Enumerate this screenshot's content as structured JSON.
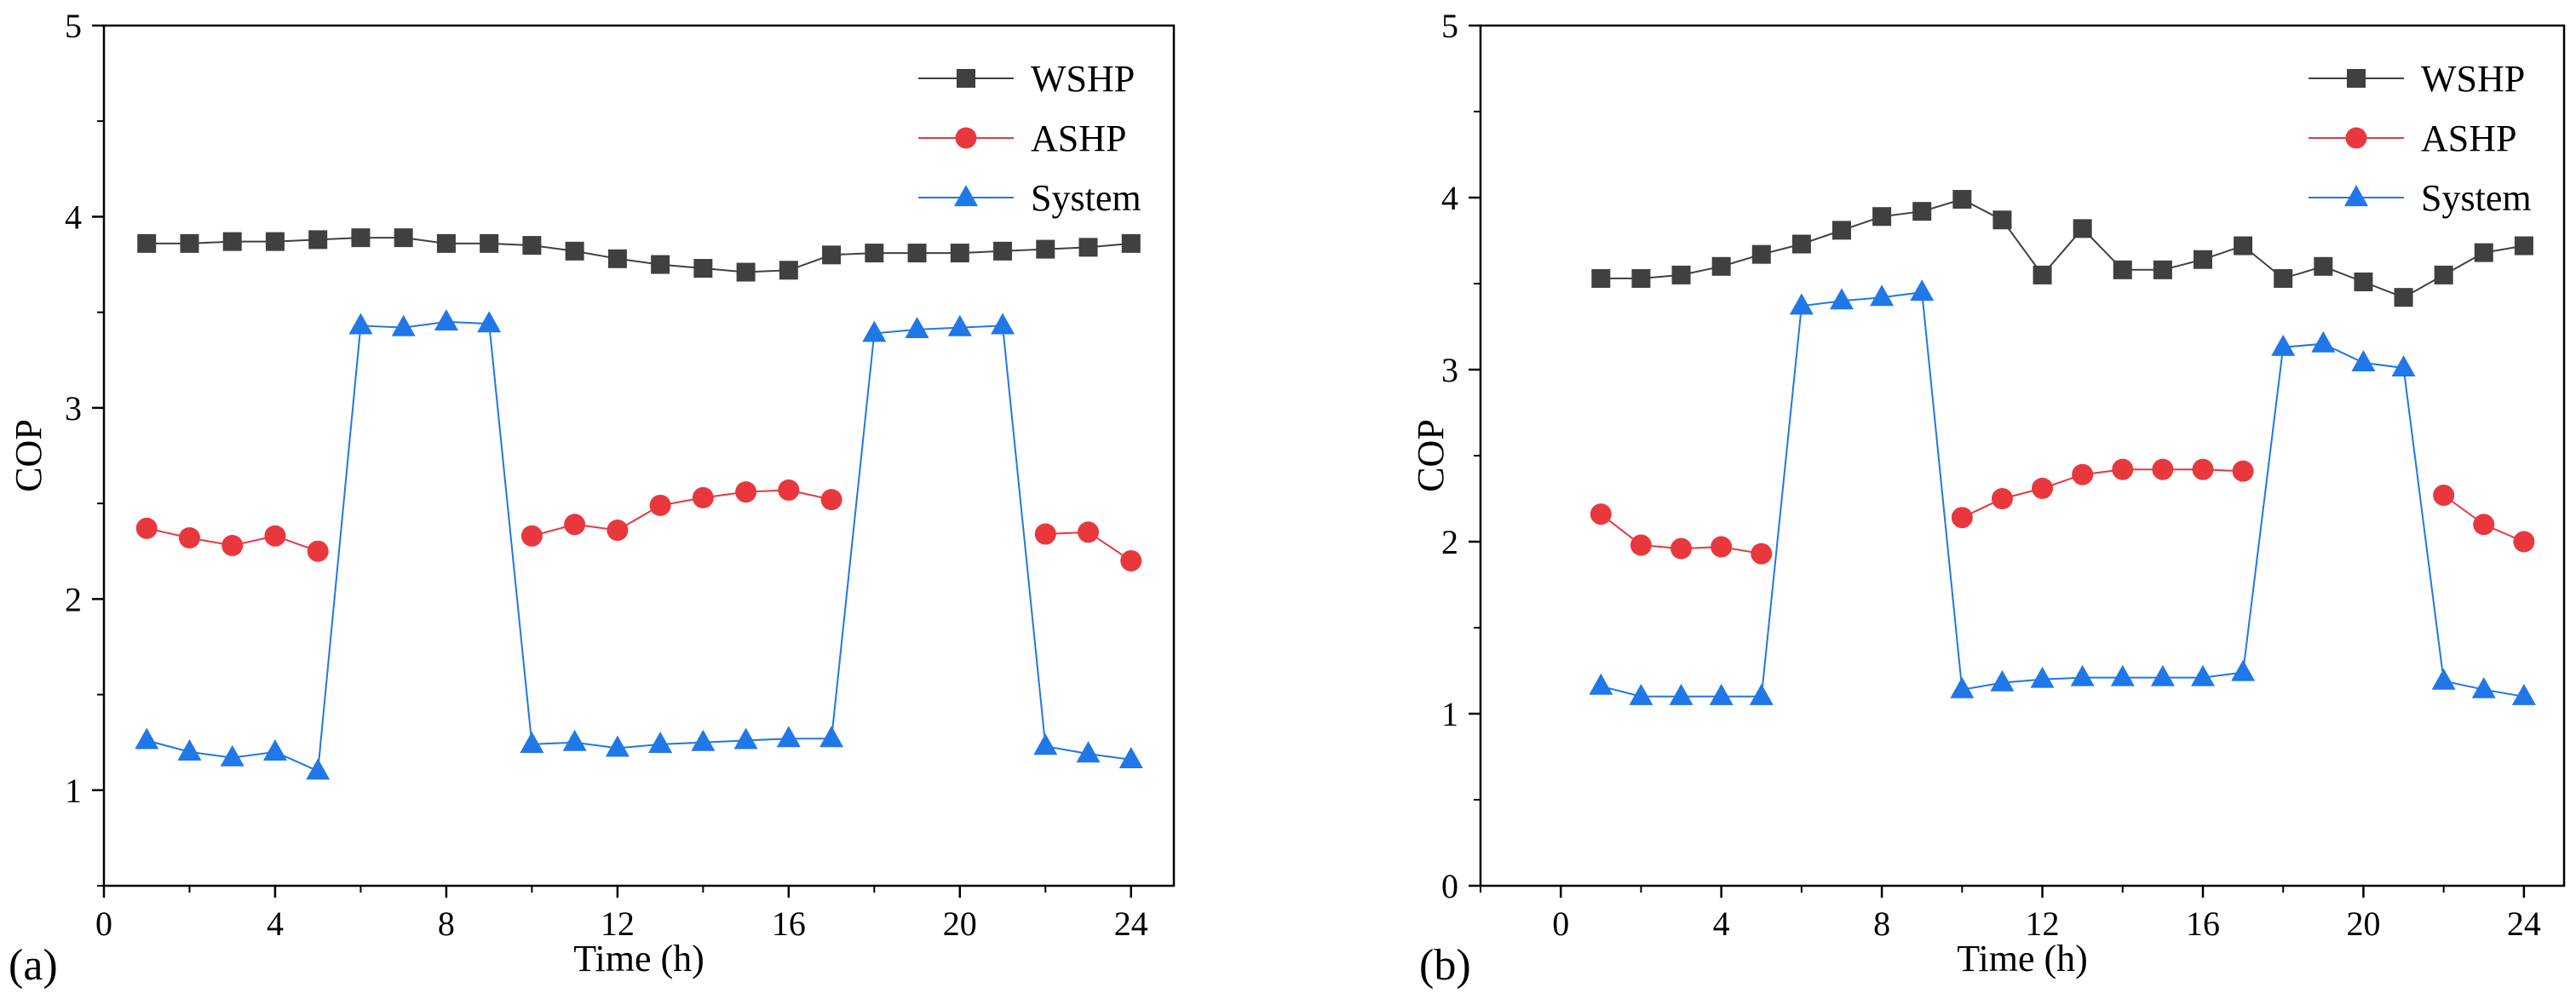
{
  "chart_data": [
    {
      "type": "line",
      "panel_label": "(a)",
      "xlabel": "Time (h)",
      "ylabel": "COP",
      "xlim": [
        0,
        25
      ],
      "ylim": [
        0.5,
        5
      ],
      "xticks": [
        "0",
        "4",
        "8",
        "12",
        "16",
        "20",
        "24"
      ],
      "yticks": [
        "1",
        "2",
        "3",
        "4",
        "5"
      ],
      "xtick_values": [
        0,
        4,
        8,
        12,
        16,
        20,
        24
      ],
      "ytick_values": [
        1,
        2,
        3,
        4,
        5
      ],
      "legend_position": "top-right",
      "series": [
        {
          "name": "WSHP",
          "color": "#404040",
          "marker": "square",
          "points": [
            [
              1,
              3.86
            ],
            [
              2,
              3.86
            ],
            [
              3,
              3.87
            ],
            [
              4,
              3.87
            ],
            [
              5,
              3.88
            ],
            [
              6,
              3.89
            ],
            [
              7,
              3.89
            ],
            [
              8,
              3.86
            ],
            [
              9,
              3.86
            ],
            [
              10,
              3.85
            ],
            [
              11,
              3.82
            ],
            [
              12,
              3.78
            ],
            [
              13,
              3.75
            ],
            [
              14,
              3.73
            ],
            [
              15,
              3.71
            ],
            [
              16,
              3.72
            ],
            [
              17,
              3.8
            ],
            [
              18,
              3.81
            ],
            [
              19,
              3.81
            ],
            [
              20,
              3.81
            ],
            [
              21,
              3.82
            ],
            [
              22,
              3.83
            ],
            [
              23,
              3.84
            ],
            [
              24,
              3.86
            ]
          ]
        },
        {
          "name": "ASHP",
          "color": "#e8383d",
          "marker": "circle",
          "segments": [
            [
              [
                1,
                2.37
              ],
              [
                2,
                2.32
              ],
              [
                3,
                2.28
              ],
              [
                4,
                2.33
              ],
              [
                5,
                2.25
              ]
            ],
            [
              [
                10,
                2.33
              ],
              [
                11,
                2.39
              ],
              [
                12,
                2.36
              ],
              [
                13,
                2.49
              ],
              [
                14,
                2.53
              ],
              [
                15,
                2.56
              ],
              [
                16,
                2.57
              ],
              [
                17,
                2.52
              ]
            ],
            [
              [
                22,
                2.34
              ],
              [
                23,
                2.35
              ],
              [
                24,
                2.2
              ]
            ]
          ]
        },
        {
          "name": "System",
          "color": "#1f77e8",
          "marker": "triangle",
          "points": [
            [
              1,
              1.26
            ],
            [
              2,
              1.2
            ],
            [
              3,
              1.17
            ],
            [
              4,
              1.2
            ],
            [
              5,
              1.1
            ],
            [
              6,
              3.43
            ],
            [
              7,
              3.42
            ],
            [
              8,
              3.45
            ],
            [
              9,
              3.44
            ],
            [
              10,
              1.24
            ],
            [
              11,
              1.25
            ],
            [
              12,
              1.22
            ],
            [
              13,
              1.24
            ],
            [
              14,
              1.25
            ],
            [
              15,
              1.26
            ],
            [
              16,
              1.27
            ],
            [
              17,
              1.27
            ],
            [
              18,
              3.39
            ],
            [
              19,
              3.41
            ],
            [
              20,
              3.42
            ],
            [
              21,
              3.43
            ],
            [
              22,
              1.23
            ],
            [
              23,
              1.19
            ],
            [
              24,
              1.16
            ]
          ]
        }
      ]
    },
    {
      "type": "line",
      "panel_label": "(b)",
      "xlabel": "Time (h)",
      "ylabel": "COP",
      "xlim": [
        -2,
        25
      ],
      "ylim": [
        0,
        5
      ],
      "xticks": [
        "0",
        "4",
        "8",
        "12",
        "16",
        "20",
        "24"
      ],
      "yticks": [
        "0",
        "1",
        "2",
        "3",
        "4",
        "5"
      ],
      "xtick_values": [
        0,
        4,
        8,
        12,
        16,
        20,
        24
      ],
      "ytick_values": [
        0,
        1,
        2,
        3,
        4,
        5
      ],
      "legend_position": "top-right",
      "series": [
        {
          "name": "WSHP",
          "color": "#404040",
          "marker": "square",
          "points": [
            [
              1,
              3.53
            ],
            [
              2,
              3.53
            ],
            [
              3,
              3.55
            ],
            [
              4,
              3.6
            ],
            [
              5,
              3.67
            ],
            [
              6,
              3.73
            ],
            [
              7,
              3.81
            ],
            [
              8,
              3.89
            ],
            [
              9,
              3.92
            ],
            [
              10,
              3.99
            ],
            [
              11,
              3.87
            ],
            [
              12,
              3.55
            ],
            [
              13,
              3.82
            ],
            [
              14,
              3.58
            ],
            [
              15,
              3.58
            ],
            [
              16,
              3.64
            ],
            [
              17,
              3.72
            ],
            [
              18,
              3.53
            ],
            [
              19,
              3.6
            ],
            [
              20,
              3.51
            ],
            [
              21,
              3.42
            ],
            [
              22,
              3.55
            ],
            [
              23,
              3.68
            ],
            [
              24,
              3.72
            ]
          ]
        },
        {
          "name": "ASHP",
          "color": "#e8383d",
          "marker": "circle",
          "segments": [
            [
              [
                1,
                2.16
              ],
              [
                2,
                1.98
              ],
              [
                3,
                1.96
              ],
              [
                4,
                1.97
              ],
              [
                5,
                1.93
              ]
            ],
            [
              [
                10,
                2.14
              ],
              [
                11,
                2.25
              ],
              [
                12,
                2.31
              ],
              [
                13,
                2.39
              ],
              [
                14,
                2.42
              ],
              [
                15,
                2.42
              ],
              [
                16,
                2.42
              ],
              [
                17,
                2.41
              ]
            ],
            [
              [
                22,
                2.27
              ],
              [
                23,
                2.1
              ],
              [
                24,
                2.0
              ]
            ]
          ]
        },
        {
          "name": "System",
          "color": "#1f77e8",
          "marker": "triangle",
          "points": [
            [
              1,
              1.16
            ],
            [
              2,
              1.1
            ],
            [
              3,
              1.1
            ],
            [
              4,
              1.1
            ],
            [
              5,
              1.1
            ],
            [
              6,
              3.37
            ],
            [
              7,
              3.4
            ],
            [
              8,
              3.42
            ],
            [
              9,
              3.45
            ],
            [
              10,
              1.14
            ],
            [
              11,
              1.18
            ],
            [
              12,
              1.2
            ],
            [
              13,
              1.21
            ],
            [
              14,
              1.21
            ],
            [
              15,
              1.21
            ],
            [
              16,
              1.21
            ],
            [
              17,
              1.24
            ],
            [
              18,
              3.13
            ],
            [
              19,
              3.15
            ],
            [
              20,
              3.04
            ],
            [
              21,
              3.01
            ],
            [
              22,
              1.19
            ],
            [
              23,
              1.14
            ],
            [
              24,
              1.1
            ]
          ]
        }
      ]
    }
  ]
}
